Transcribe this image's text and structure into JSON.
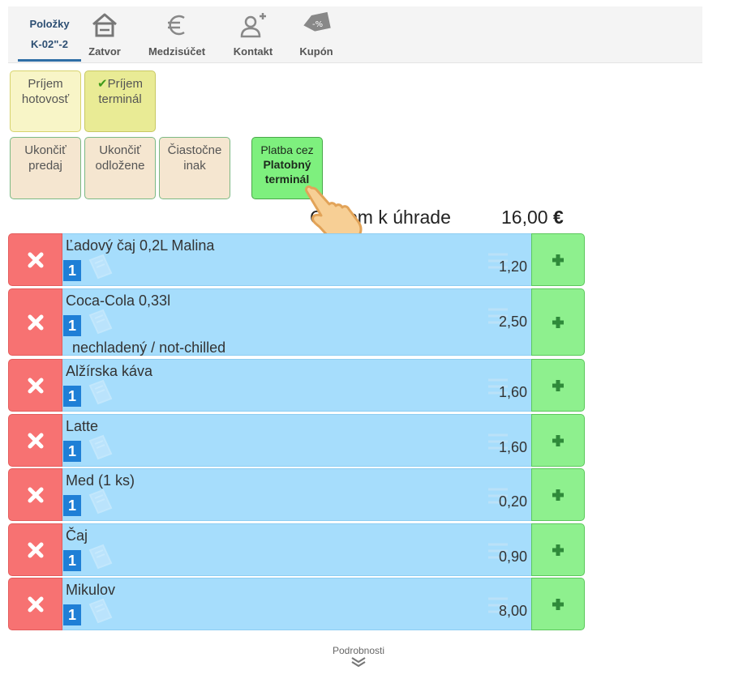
{
  "toolbar": {
    "active_tab": {
      "title": "Položky",
      "subtitle": "K-02\"-2"
    },
    "tools": [
      {
        "label": "Zatvor",
        "icon": "home-icon"
      },
      {
        "label": "Medzisúčet",
        "icon": "euro-icon"
      },
      {
        "label": "Kontakt",
        "icon": "add-contact-icon"
      },
      {
        "label": "Kupón",
        "icon": "coupon-icon",
        "badge": "-%"
      }
    ]
  },
  "payment": {
    "cash": {
      "line1": "Príjem",
      "line2": "hotovosť"
    },
    "terminal": {
      "check": "✔",
      "line1": "Príjem",
      "line2": "terminál"
    }
  },
  "actions": {
    "finish_sale": {
      "line1": "Ukončiť",
      "line2": "predaj"
    },
    "finish_deferred": {
      "line1": "Ukončiť",
      "line2": "odložene"
    },
    "partial_other": {
      "line1": "Čiastočne",
      "line2": "inak"
    },
    "pay_terminal": {
      "line1": "Platba cez",
      "line2": "Platobný",
      "line3": "terminál"
    }
  },
  "total": {
    "label": "Celkom k úhrade",
    "value": "16,00",
    "currency": "€"
  },
  "items": [
    {
      "name": "Ľadový čaj 0,2L Malina",
      "qty": "1",
      "price": "1,20",
      "modifier": ""
    },
    {
      "name": "Coca-Cola 0,33l",
      "qty": "1",
      "price": "2,50",
      "modifier": "nechladený / not-chilled"
    },
    {
      "name": "Alžírska káva",
      "qty": "1",
      "price": "1,60",
      "modifier": ""
    },
    {
      "name": "Latte",
      "qty": "1",
      "price": "1,60",
      "modifier": ""
    },
    {
      "name": "Med (1 ks)",
      "qty": "1",
      "price": "0,20",
      "modifier": ""
    },
    {
      "name": "Čaj",
      "qty": "1",
      "price": "0,90",
      "modifier": ""
    },
    {
      "name": "Mikulov",
      "qty": "1",
      "price": "8,00",
      "modifier": ""
    }
  ],
  "details": {
    "label": "Podrobnosti"
  },
  "colors": {
    "delete": "#f77272",
    "item_body": "#a6ddfc",
    "add": "#8ef08e",
    "qty_badge": "#1f7fd6",
    "pay_terminal": "#7ef07e"
  }
}
